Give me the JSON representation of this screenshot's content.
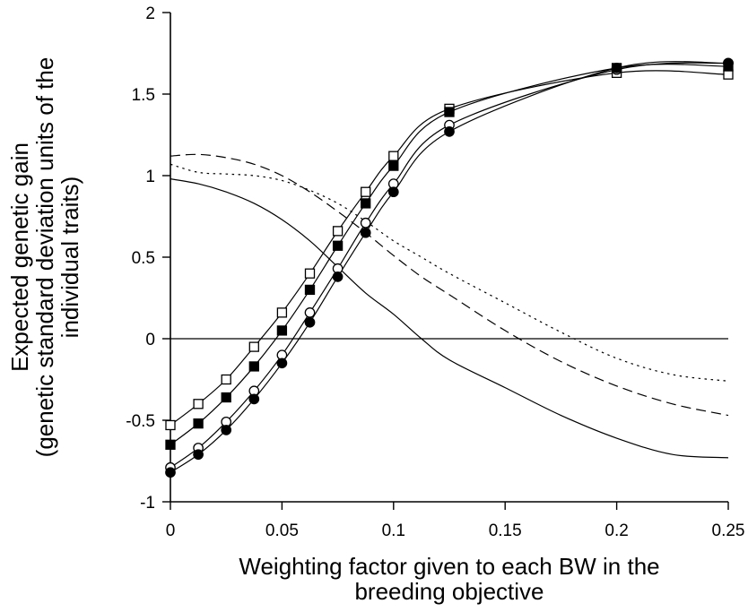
{
  "chart_data": {
    "type": "line",
    "title": "",
    "xlabel": [
      "Weighting factor given to each BW in the",
      "breeding objective"
    ],
    "ylabel": [
      "Expected genetic gain",
      "(genetic standard deviation units of the",
      "individual traits)"
    ],
    "xlim": [
      0,
      0.25
    ],
    "ylim": [
      -1,
      2
    ],
    "xticks": [
      0,
      0.05,
      0.1,
      0.15,
      0.2,
      0.25
    ],
    "xtick_labels": [
      "0",
      "0.05",
      "0.1",
      "0.15",
      "0.2",
      "0.25"
    ],
    "yticks": [
      -1,
      -0.5,
      0,
      0.5,
      1,
      1.5,
      2
    ],
    "ytick_labels": [
      "-1",
      "-0.5",
      "0",
      "0.5",
      "1",
      "1.5",
      "2"
    ],
    "grid": false,
    "legend": "none",
    "reference_line_y": 0,
    "marker_series": [
      {
        "marker": "open-square",
        "x": [
          0,
          0.0125,
          0.025,
          0.0375,
          0.05,
          0.0625,
          0.075,
          0.0875,
          0.1,
          0.125,
          0.2,
          0.25
        ],
        "y": [
          -0.53,
          -0.4,
          -0.25,
          -0.05,
          0.16,
          0.4,
          0.66,
          0.9,
          1.12,
          1.41,
          1.63,
          1.62
        ]
      },
      {
        "marker": "filled-square",
        "x": [
          0,
          0.0125,
          0.025,
          0.0375,
          0.05,
          0.0625,
          0.075,
          0.0875,
          0.1,
          0.125,
          0.2,
          0.25
        ],
        "y": [
          -0.65,
          -0.52,
          -0.36,
          -0.17,
          0.05,
          0.3,
          0.57,
          0.83,
          1.06,
          1.39,
          1.66,
          1.67
        ]
      },
      {
        "marker": "open-circle",
        "x": [
          0,
          0.0125,
          0.025,
          0.0375,
          0.05,
          0.0625,
          0.075,
          0.0875,
          0.1,
          0.125,
          0.2,
          0.25
        ],
        "y": [
          -0.79,
          -0.67,
          -0.51,
          -0.32,
          -0.1,
          0.16,
          0.43,
          0.71,
          0.95,
          1.31,
          1.65,
          1.69
        ]
      },
      {
        "marker": "filled-circle",
        "x": [
          0,
          0.0125,
          0.025,
          0.0375,
          0.05,
          0.0625,
          0.075,
          0.0875,
          0.1,
          0.125,
          0.2,
          0.25
        ],
        "y": [
          -0.82,
          -0.71,
          -0.56,
          -0.37,
          -0.15,
          0.1,
          0.38,
          0.65,
          0.9,
          1.27,
          1.66,
          1.69
        ]
      }
    ],
    "plain_series": [
      {
        "style": "solid",
        "x": [
          0,
          0.0125,
          0.025,
          0.0375,
          0.05,
          0.0625,
          0.075,
          0.0875,
          0.1,
          0.1125,
          0.125,
          0.15,
          0.175,
          0.2,
          0.225,
          0.25
        ],
        "y": [
          0.98,
          0.95,
          0.9,
          0.83,
          0.73,
          0.6,
          0.44,
          0.28,
          0.15,
          0.0,
          -0.13,
          -0.3,
          -0.47,
          -0.61,
          -0.71,
          -0.73
        ]
      },
      {
        "style": "dashed",
        "x": [
          0,
          0.0125,
          0.025,
          0.0375,
          0.05,
          0.0625,
          0.075,
          0.0875,
          0.1,
          0.1125,
          0.125,
          0.15,
          0.175,
          0.2,
          0.225,
          0.25
        ],
        "y": [
          1.12,
          1.13,
          1.11,
          1.07,
          1.0,
          0.9,
          0.78,
          0.65,
          0.51,
          0.38,
          0.27,
          0.05,
          -0.14,
          -0.29,
          -0.4,
          -0.47
        ]
      },
      {
        "style": "dotted",
        "x": [
          0,
          0.0125,
          0.025,
          0.0375,
          0.05,
          0.0625,
          0.075,
          0.0875,
          0.1,
          0.1125,
          0.125,
          0.15,
          0.175,
          0.2,
          0.225,
          0.25
        ],
        "y": [
          1.07,
          1.02,
          1.01,
          1.0,
          0.97,
          0.91,
          0.83,
          0.72,
          0.6,
          0.5,
          0.4,
          0.22,
          0.04,
          -0.12,
          -0.22,
          -0.26
        ]
      }
    ]
  }
}
